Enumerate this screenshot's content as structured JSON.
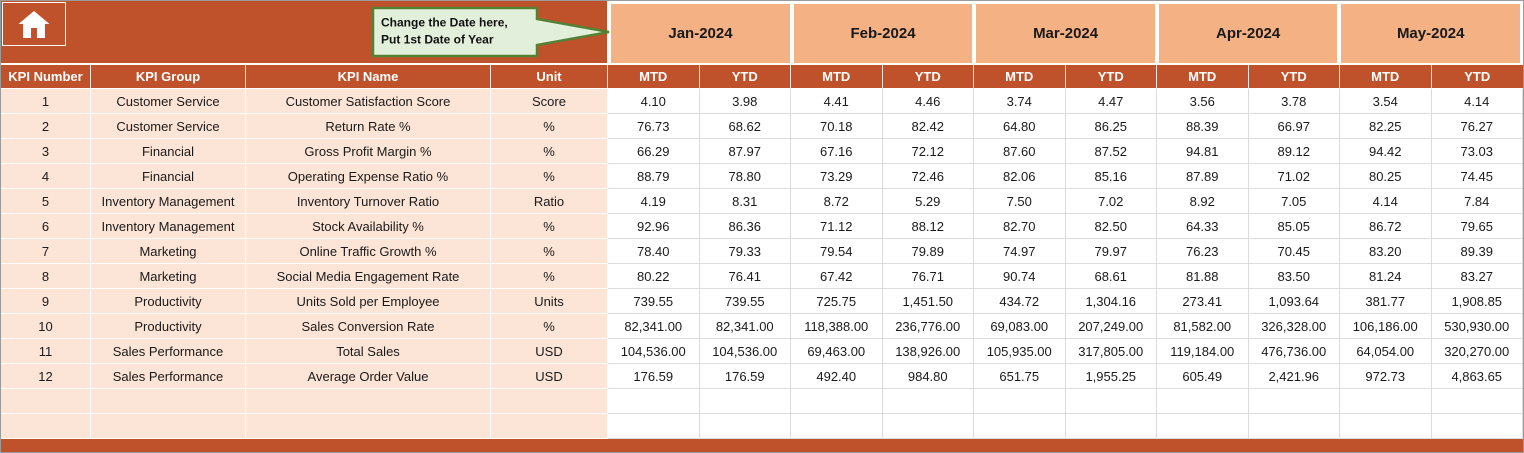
{
  "callout": {
    "line1": "Change the Date here,",
    "line2": "Put 1st Date of Year"
  },
  "home_icon": "home-icon",
  "months": [
    "Jan-2024",
    "Feb-2024",
    "Mar-2024",
    "Apr-2024",
    "May-2024"
  ],
  "sub_headers": [
    "MTD",
    "YTD"
  ],
  "left_headers": [
    "KPI Number",
    "KPI Group",
    "KPI Name",
    "Unit"
  ],
  "rows": [
    {
      "num": "1",
      "group": "Customer Service",
      "name": "Customer Satisfaction Score",
      "unit": "Score",
      "values": [
        "4.10",
        "3.98",
        "4.41",
        "4.46",
        "3.74",
        "4.47",
        "3.56",
        "3.78",
        "3.54",
        "4.14"
      ]
    },
    {
      "num": "2",
      "group": "Customer Service",
      "name": "Return Rate %",
      "unit": "%",
      "values": [
        "76.73",
        "68.62",
        "70.18",
        "82.42",
        "64.80",
        "86.25",
        "88.39",
        "66.97",
        "82.25",
        "76.27"
      ]
    },
    {
      "num": "3",
      "group": "Financial",
      "name": "Gross Profit Margin %",
      "unit": "%",
      "values": [
        "66.29",
        "87.97",
        "67.16",
        "72.12",
        "87.60",
        "87.52",
        "94.81",
        "89.12",
        "94.42",
        "73.03"
      ]
    },
    {
      "num": "4",
      "group": "Financial",
      "name": "Operating Expense Ratio %",
      "unit": "%",
      "values": [
        "88.79",
        "78.80",
        "73.29",
        "72.46",
        "82.06",
        "85.16",
        "87.89",
        "71.02",
        "80.25",
        "74.45"
      ]
    },
    {
      "num": "5",
      "group": "Inventory Management",
      "name": "Inventory Turnover Ratio",
      "unit": "Ratio",
      "values": [
        "4.19",
        "8.31",
        "8.72",
        "5.29",
        "7.50",
        "7.02",
        "8.92",
        "7.05",
        "4.14",
        "7.84"
      ]
    },
    {
      "num": "6",
      "group": "Inventory Management",
      "name": "Stock Availability %",
      "unit": "%",
      "values": [
        "92.96",
        "86.36",
        "71.12",
        "88.12",
        "82.70",
        "82.50",
        "64.33",
        "85.05",
        "86.72",
        "79.65"
      ]
    },
    {
      "num": "7",
      "group": "Marketing",
      "name": "Online Traffic Growth %",
      "unit": "%",
      "values": [
        "78.40",
        "79.33",
        "79.54",
        "79.89",
        "74.97",
        "79.97",
        "76.23",
        "70.45",
        "83.20",
        "89.39"
      ]
    },
    {
      "num": "8",
      "group": "Marketing",
      "name": "Social Media Engagement Rate",
      "unit": "%",
      "values": [
        "80.22",
        "76.41",
        "67.42",
        "76.71",
        "90.74",
        "68.61",
        "81.88",
        "83.50",
        "81.24",
        "83.27"
      ]
    },
    {
      "num": "9",
      "group": "Productivity",
      "name": "Units Sold per Employee",
      "unit": "Units",
      "values": [
        "739.55",
        "739.55",
        "725.75",
        "1,451.50",
        "434.72",
        "1,304.16",
        "273.41",
        "1,093.64",
        "381.77",
        "1,908.85"
      ]
    },
    {
      "num": "10",
      "group": "Productivity",
      "name": "Sales Conversion Rate",
      "unit": "%",
      "values": [
        "82,341.00",
        "82,341.00",
        "118,388.00",
        "236,776.00",
        "69,083.00",
        "207,249.00",
        "81,582.00",
        "326,328.00",
        "106,186.00",
        "530,930.00"
      ]
    },
    {
      "num": "11",
      "group": "Sales Performance",
      "name": "Total Sales",
      "unit": "USD",
      "values": [
        "104,536.00",
        "104,536.00",
        "69,463.00",
        "138,926.00",
        "105,935.00",
        "317,805.00",
        "119,184.00",
        "476,736.00",
        "64,054.00",
        "320,270.00"
      ]
    },
    {
      "num": "12",
      "group": "Sales Performance",
      "name": "Average Order Value",
      "unit": "USD",
      "values": [
        "176.59",
        "176.59",
        "492.40",
        "984.80",
        "651.75",
        "1,955.25",
        "605.49",
        "2,421.96",
        "972.73",
        "4,863.65"
      ]
    }
  ],
  "empty_row_count": 2,
  "colors": {
    "header_dark": "#C0522B",
    "month_band": "#F4B183",
    "left_columns": "#FCE4D6",
    "callout_bg": "#E2EFDA",
    "callout_border": "#548235",
    "grid_line": "#DCDCDC"
  }
}
